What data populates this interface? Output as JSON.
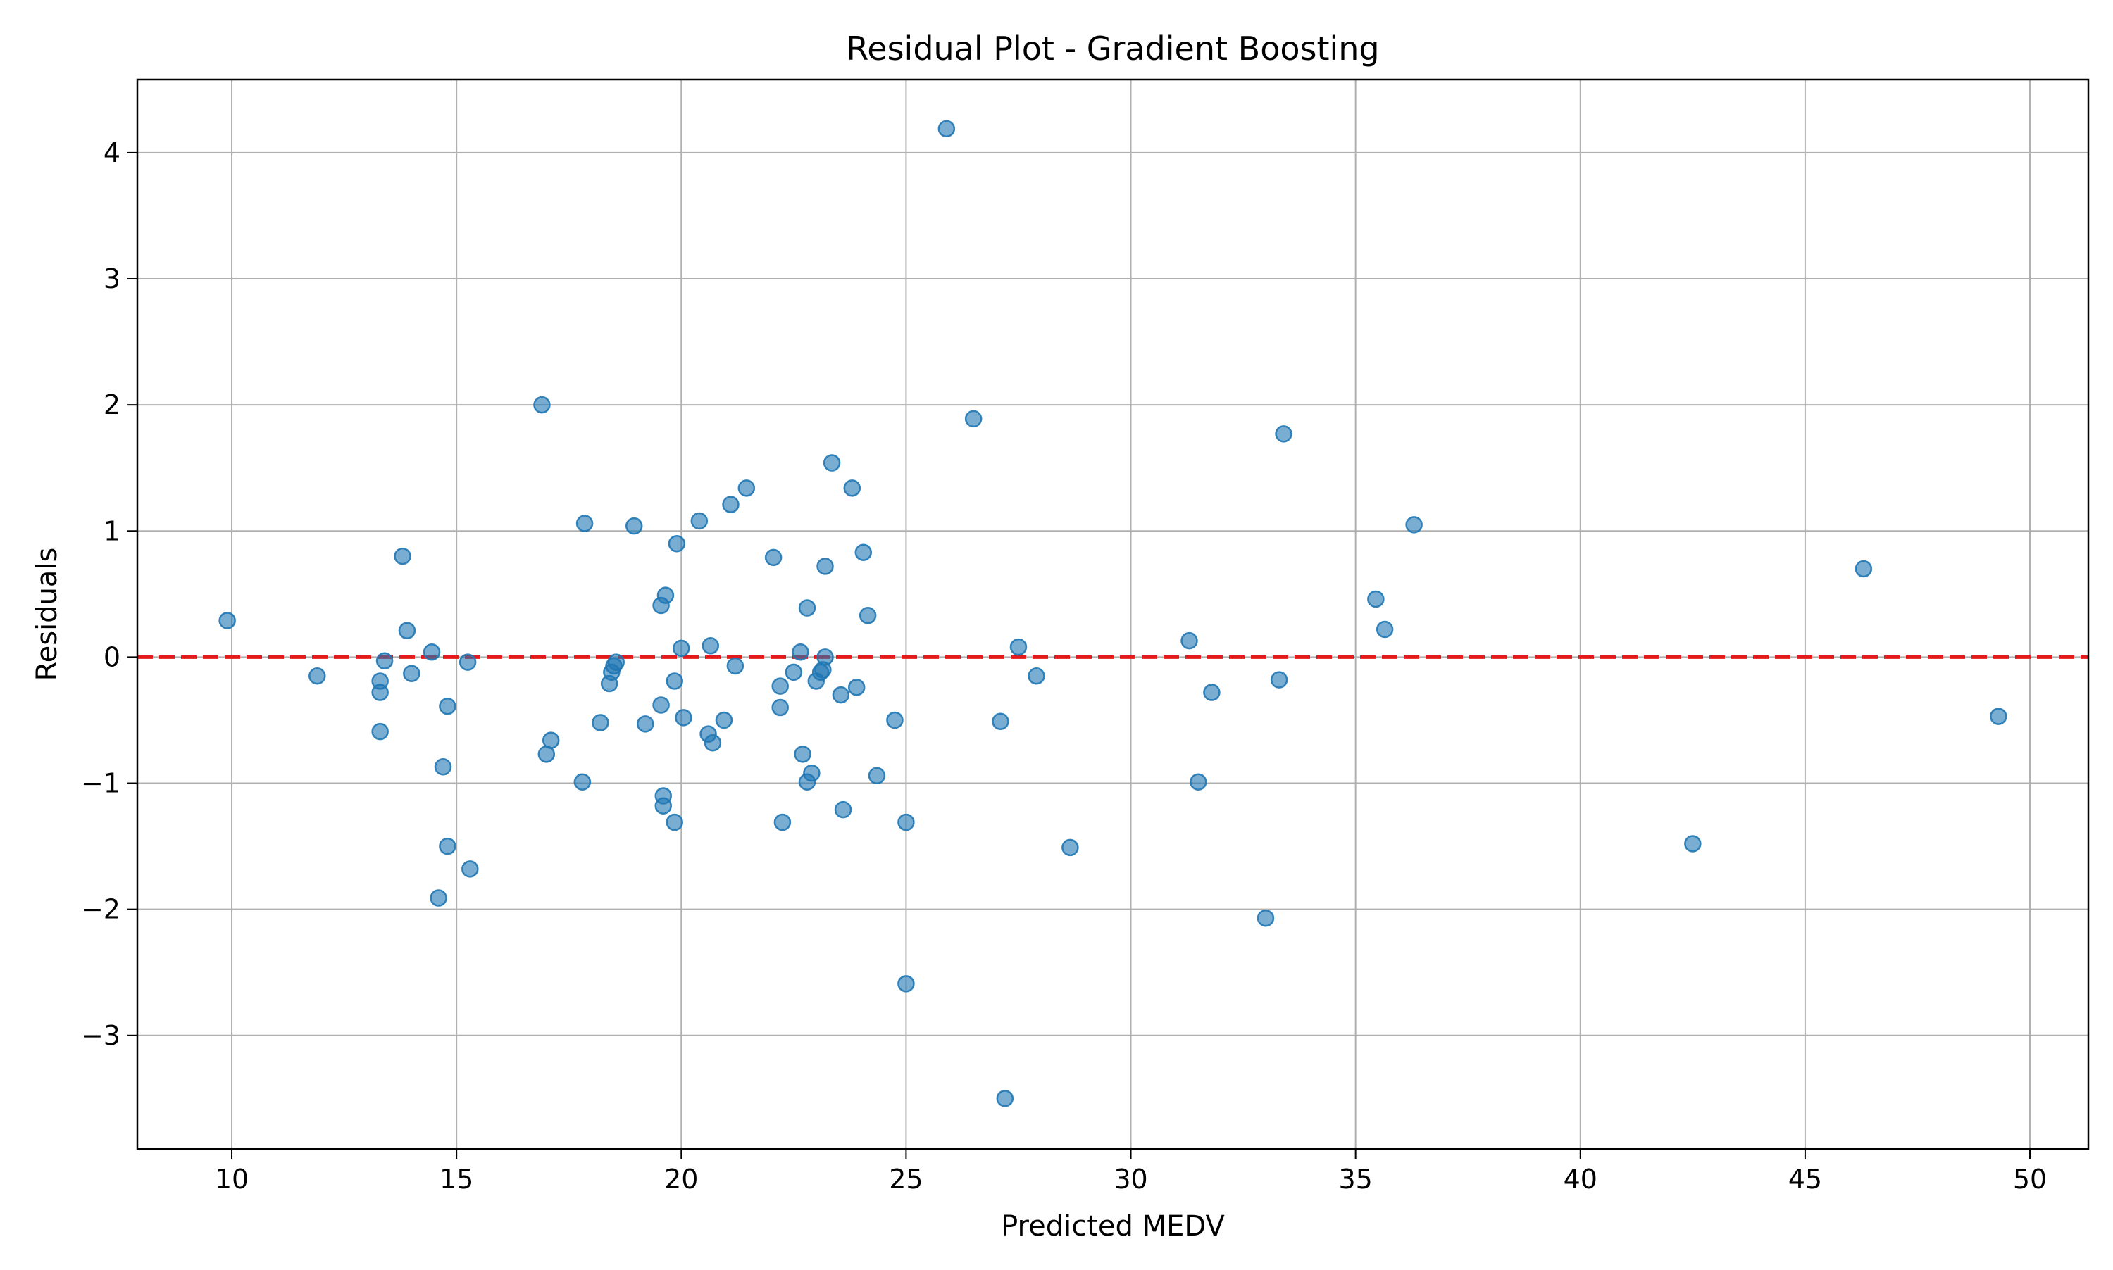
{
  "chart_data": {
    "type": "scatter",
    "title": "Residual Plot - Gradient Boosting",
    "xlabel": "Predicted MEDV",
    "ylabel": "Residuals",
    "xlim": [
      7.9,
      51.3
    ],
    "ylim": [
      -3.9,
      4.58
    ],
    "xticks": [
      10,
      15,
      20,
      25,
      30,
      35,
      40,
      45,
      50
    ],
    "yticks": [
      -3,
      -2,
      -1,
      0,
      1,
      2,
      3,
      4
    ],
    "xtick_labels": [
      "10",
      "15",
      "20",
      "25",
      "30",
      "35",
      "40",
      "45",
      "50"
    ],
    "ytick_labels": [
      "−3",
      "−2",
      "−1",
      "0",
      "1",
      "2",
      "3",
      "4"
    ],
    "grid": true,
    "reference_line": {
      "y": 0,
      "color": "#e31a1c",
      "style": "dashed"
    },
    "point_color": "#1f77b4",
    "x": [
      9.9,
      11.9,
      13.3,
      13.3,
      13.3,
      13.4,
      13.8,
      13.9,
      14.0,
      14.45,
      14.6,
      14.7,
      14.8,
      14.8,
      15.3,
      15.25,
      16.9,
      17.0,
      17.1,
      17.8,
      17.85,
      18.2,
      18.4,
      18.45,
      18.5,
      18.55,
      18.95,
      19.2,
      19.55,
      19.55,
      19.6,
      19.6,
      19.65,
      19.85,
      19.85,
      19.9,
      20.0,
      20.05,
      20.4,
      20.6,
      20.65,
      20.7,
      20.95,
      21.1,
      21.2,
      21.45,
      22.05,
      22.2,
      22.2,
      22.25,
      22.5,
      22.65,
      22.7,
      22.8,
      22.8,
      22.9,
      23.0,
      23.1,
      23.15,
      23.2,
      23.2,
      23.35,
      23.55,
      23.6,
      23.8,
      23.9,
      24.05,
      24.15,
      24.35,
      24.75,
      25.0,
      25.0,
      25.9,
      26.5,
      27.1,
      27.2,
      27.5,
      27.9,
      28.65,
      31.3,
      31.5,
      31.8,
      33.0,
      33.3,
      33.4,
      35.45,
      35.65,
      36.3,
      42.5,
      46.3,
      49.3
    ],
    "y": [
      0.29,
      -0.15,
      -0.19,
      -0.28,
      -0.59,
      -0.03,
      0.8,
      0.21,
      -0.13,
      0.04,
      -1.91,
      -0.87,
      -0.39,
      -1.5,
      -1.68,
      -0.04,
      2.0,
      -0.77,
      -0.66,
      -0.99,
      1.06,
      -0.52,
      -0.21,
      -0.12,
      -0.07,
      -0.04,
      1.04,
      -0.53,
      0.41,
      -0.38,
      -1.1,
      -1.18,
      0.49,
      -0.19,
      -1.31,
      0.9,
      0.07,
      -0.48,
      1.08,
      -0.61,
      0.09,
      -0.68,
      -0.5,
      1.21,
      -0.07,
      1.34,
      0.79,
      -0.23,
      -0.4,
      -1.31,
      -0.12,
      0.04,
      -0.77,
      0.39,
      -0.99,
      -0.92,
      -0.19,
      -0.12,
      -0.1,
      0.0,
      0.72,
      1.54,
      -0.3,
      -1.21,
      1.34,
      -0.24,
      0.83,
      0.33,
      -0.94,
      -0.5,
      -2.59,
      -1.31,
      4.19,
      1.89,
      -0.51,
      -3.5,
      0.08,
      -0.15,
      -1.51,
      0.13,
      -0.99,
      -0.28,
      -2.07,
      -0.18,
      1.77,
      0.46,
      0.22,
      1.05,
      -1.48,
      0.7,
      -0.47
    ]
  }
}
